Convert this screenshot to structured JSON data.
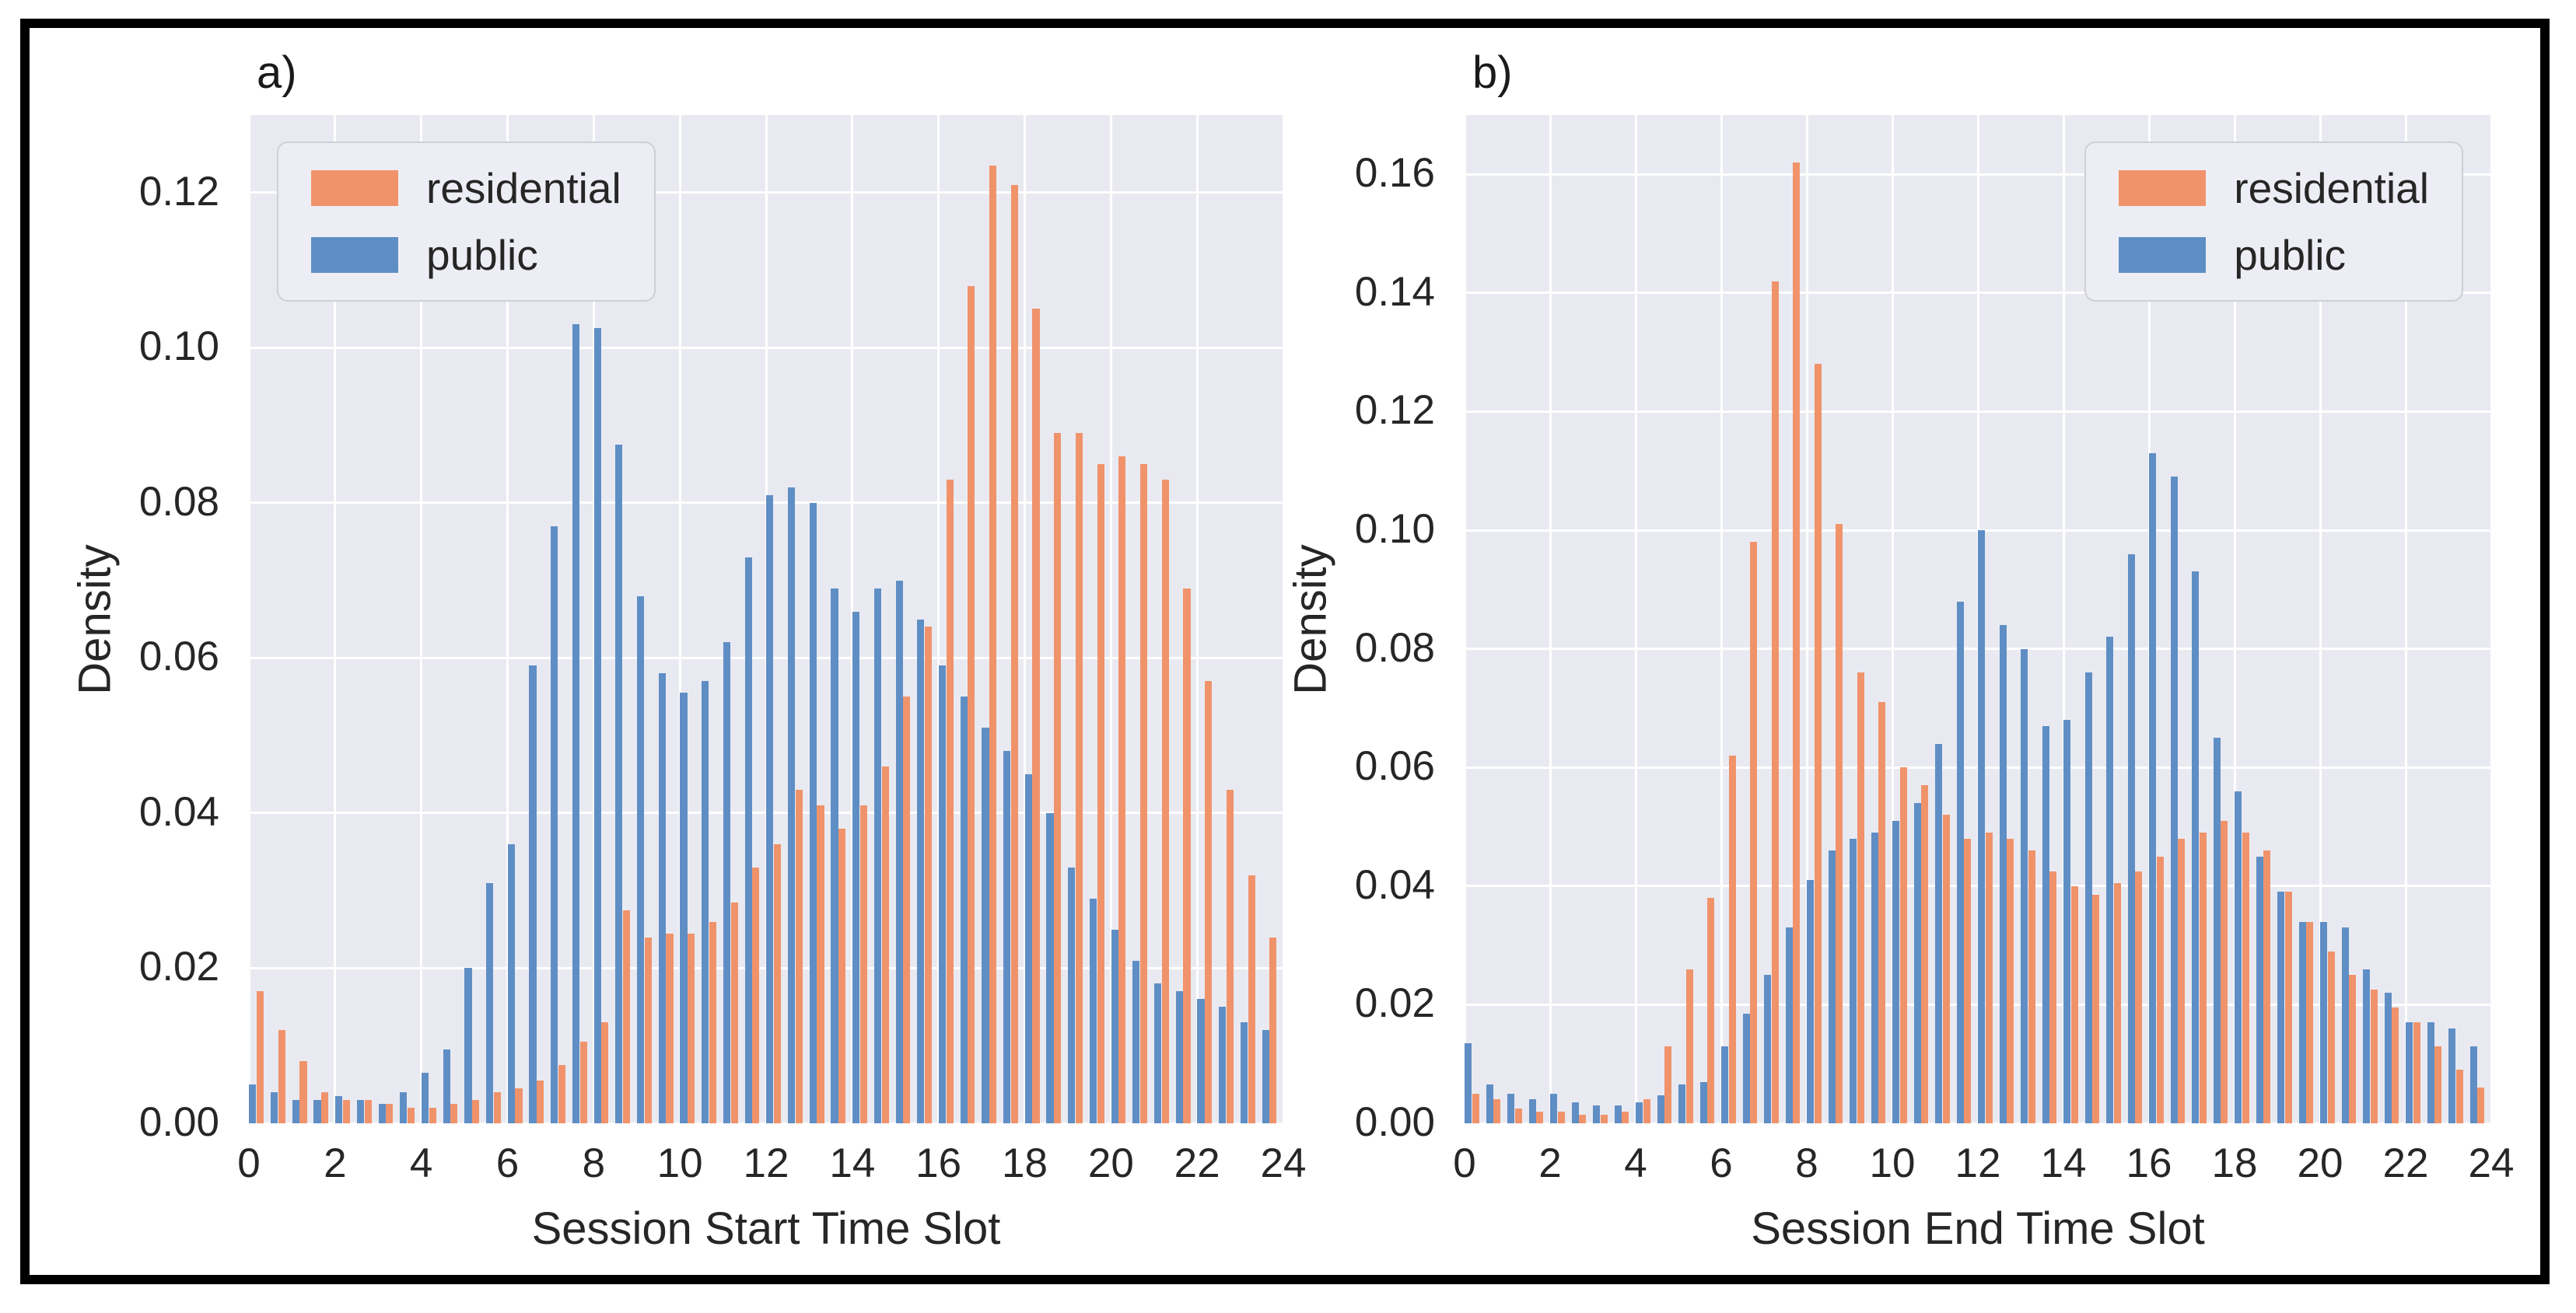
{
  "figure": {
    "background_color": "#ffffff",
    "frame_color": "#000000",
    "plot_background_color": "#E9EAF1",
    "gridline_color": "#ffffff"
  },
  "chart_data": [
    {
      "type": "bar",
      "panel_label": "a)",
      "xlabel": "Session Start Time Slot",
      "ylabel": "Density",
      "xlim": [
        0,
        24
      ],
      "ylim": [
        0,
        0.13
      ],
      "xticks": [
        0,
        2,
        4,
        6,
        8,
        10,
        12,
        14,
        16,
        18,
        20,
        22,
        24
      ],
      "yticks": [
        0.0,
        0.02,
        0.04,
        0.06,
        0.08,
        0.1,
        0.12
      ],
      "grid": true,
      "bin_width_hours": 0.5,
      "slot_starts": [
        0,
        0.5,
        1,
        1.5,
        2,
        2.5,
        3,
        3.5,
        4,
        4.5,
        5,
        5.5,
        6,
        6.5,
        7,
        7.5,
        8,
        8.5,
        9,
        9.5,
        10,
        10.5,
        11,
        11.5,
        12,
        12.5,
        13,
        13.5,
        14,
        14.5,
        15,
        15.5,
        16,
        16.5,
        17,
        17.5,
        18,
        18.5,
        19,
        19.5,
        20,
        20.5,
        21,
        21.5,
        22,
        22.5,
        23,
        23.5
      ],
      "legend": {
        "position": "top-left",
        "entries": [
          {
            "label": "residential",
            "color": "#F0936B"
          },
          {
            "label": "public",
            "color": "#5F8EC5"
          }
        ]
      },
      "slot_order": [
        "public",
        "residential"
      ],
      "series": [
        {
          "name": "public",
          "color": "#5F8EC5",
          "values": [
            0.005,
            0.004,
            0.003,
            0.003,
            0.0035,
            0.003,
            0.0025,
            0.004,
            0.0065,
            0.0095,
            0.02,
            0.031,
            0.036,
            0.059,
            0.077,
            0.103,
            0.1025,
            0.0875,
            0.068,
            0.058,
            0.0555,
            0.057,
            0.062,
            0.073,
            0.081,
            0.082,
            0.08,
            0.069,
            0.066,
            0.069,
            0.07,
            0.065,
            0.059,
            0.055,
            0.051,
            0.048,
            0.045,
            0.04,
            0.033,
            0.029,
            0.025,
            0.021,
            0.018,
            0.017,
            0.016,
            0.015,
            0.013,
            0.012
          ]
        },
        {
          "name": "residential",
          "color": "#F0936B",
          "values": [
            0.017,
            0.012,
            0.008,
            0.004,
            0.003,
            0.003,
            0.0025,
            0.002,
            0.002,
            0.0025,
            0.003,
            0.004,
            0.0045,
            0.0055,
            0.0075,
            0.0105,
            0.013,
            0.0275,
            0.024,
            0.0245,
            0.0245,
            0.026,
            0.0285,
            0.033,
            0.036,
            0.043,
            0.041,
            0.038,
            0.041,
            0.046,
            0.055,
            0.064,
            0.083,
            0.108,
            0.1235,
            0.121,
            0.105,
            0.089,
            0.089,
            0.085,
            0.086,
            0.085,
            0.083,
            0.069,
            0.057,
            0.043,
            0.032,
            0.024
          ]
        }
      ]
    },
    {
      "type": "bar",
      "panel_label": "b)",
      "xlabel": "Session End Time Slot",
      "ylabel": "Density",
      "xlim": [
        0,
        24
      ],
      "ylim": [
        0,
        0.17
      ],
      "xticks": [
        0,
        2,
        4,
        6,
        8,
        10,
        12,
        14,
        16,
        18,
        20,
        22,
        24
      ],
      "yticks": [
        0.0,
        0.02,
        0.04,
        0.06,
        0.08,
        0.1,
        0.12,
        0.14,
        0.16
      ],
      "grid": true,
      "bin_width_hours": 0.5,
      "slot_starts": [
        0,
        0.5,
        1,
        1.5,
        2,
        2.5,
        3,
        3.5,
        4,
        4.5,
        5,
        5.5,
        6,
        6.5,
        7,
        7.5,
        8,
        8.5,
        9,
        9.5,
        10,
        10.5,
        11,
        11.5,
        12,
        12.5,
        13,
        13.5,
        14,
        14.5,
        15,
        15.5,
        16,
        16.5,
        17,
        17.5,
        18,
        18.5,
        19,
        19.5,
        20,
        20.5,
        21,
        21.5,
        22,
        22.5,
        23,
        23.5
      ],
      "legend": {
        "position": "top-right",
        "entries": [
          {
            "label": "residential",
            "color": "#F0936B"
          },
          {
            "label": "public",
            "color": "#5F8EC5"
          }
        ]
      },
      "slot_order": [
        "public",
        "residential"
      ],
      "series": [
        {
          "name": "public",
          "color": "#5F8EC5",
          "values": [
            0.0135,
            0.0065,
            0.005,
            0.004,
            0.005,
            0.0035,
            0.003,
            0.003,
            0.0035,
            0.0047,
            0.0065,
            0.007,
            0.013,
            0.0185,
            0.025,
            0.033,
            0.041,
            0.046,
            0.048,
            0.049,
            0.051,
            0.054,
            0.064,
            0.088,
            0.1,
            0.084,
            0.08,
            0.067,
            0.068,
            0.076,
            0.082,
            0.096,
            0.113,
            0.109,
            0.093,
            0.065,
            0.056,
            0.045,
            0.039,
            0.034,
            0.034,
            0.033,
            0.026,
            0.022,
            0.017,
            0.017,
            0.016,
            0.013
          ]
        },
        {
          "name": "residential",
          "color": "#F0936B",
          "values": [
            0.005,
            0.004,
            0.0025,
            0.002,
            0.002,
            0.0015,
            0.0015,
            0.002,
            0.004,
            0.013,
            0.026,
            0.038,
            0.062,
            0.098,
            0.142,
            0.162,
            0.128,
            0.101,
            0.076,
            0.071,
            0.06,
            0.057,
            0.052,
            0.048,
            0.049,
            0.048,
            0.046,
            0.0425,
            0.04,
            0.0385,
            0.0405,
            0.0425,
            0.045,
            0.048,
            0.049,
            0.051,
            0.049,
            0.046,
            0.039,
            0.034,
            0.029,
            0.025,
            0.0225,
            0.0195,
            0.017,
            0.013,
            0.009,
            0.006
          ]
        }
      ]
    }
  ]
}
